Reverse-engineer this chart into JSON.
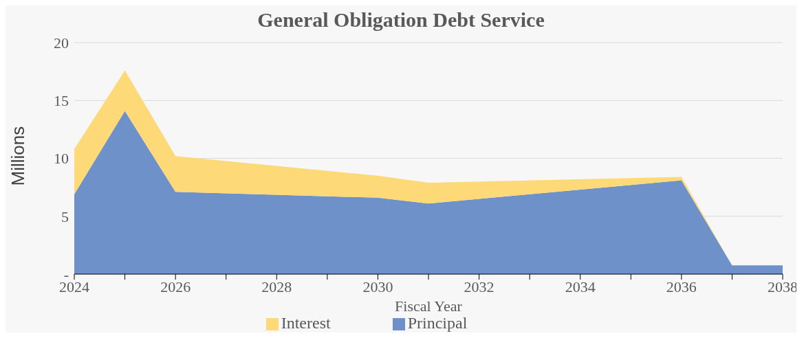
{
  "chart_data": {
    "type": "area",
    "title": "General Obligation Debt Service",
    "xlabel": "Fiscal Year",
    "ylabel": "Millions",
    "stacked": true,
    "x": [
      2024,
      2025,
      2026,
      2030,
      2031,
      2036,
      2037,
      2038
    ],
    "series": [
      {
        "name": "Principal",
        "color": "#6f91c9",
        "values": [
          6.9,
          14.1,
          7.1,
          6.6,
          6.1,
          8.1,
          0.75,
          0.75
        ]
      },
      {
        "name": "Interest",
        "color": "#fdd978",
        "values": [
          3.9,
          3.5,
          3.1,
          1.9,
          1.8,
          0.3,
          0,
          0
        ]
      }
    ],
    "xlim": [
      2024,
      2038
    ],
    "xticks": [
      2024,
      {
        "value": 2025,
        "label": null
      },
      2026,
      {
        "value": 2027,
        "label": null
      },
      2028,
      {
        "value": 2029,
        "label": null
      },
      2030,
      {
        "value": 2031,
        "label": null
      },
      2032,
      {
        "value": 2033,
        "label": null
      },
      2034,
      {
        "value": 2035,
        "label": null
      },
      2036,
      {
        "value": 2037,
        "label": null
      },
      2038
    ],
    "ylim": [
      0,
      20
    ],
    "yticks": [
      {
        "value": 0,
        "label": "-"
      },
      5,
      10,
      15,
      20
    ],
    "grid": "y",
    "legend": "bottom"
  }
}
